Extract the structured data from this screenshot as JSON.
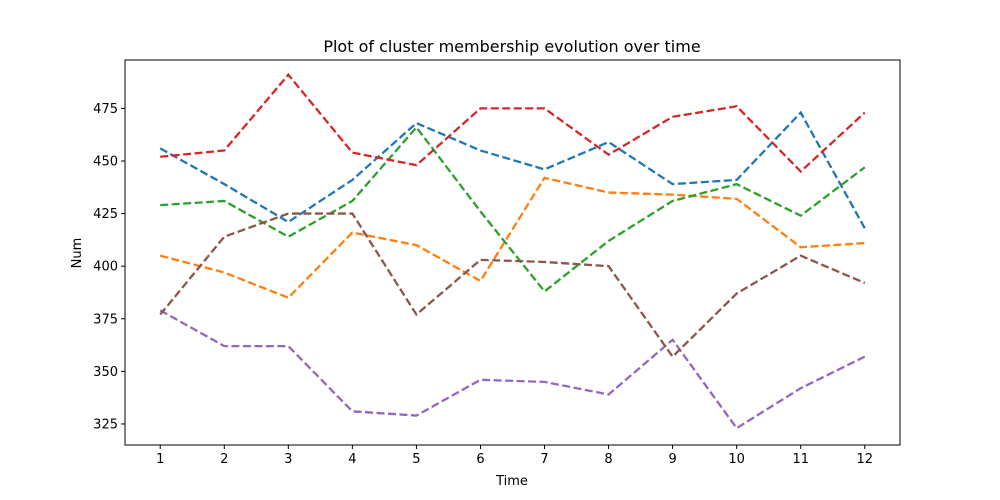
{
  "chart_data": {
    "type": "line",
    "title": "Plot of cluster membership evolution over time",
    "xlabel": "Time",
    "ylabel": "Num",
    "x": [
      1,
      2,
      3,
      4,
      5,
      6,
      7,
      8,
      9,
      10,
      11,
      12
    ],
    "xlim": [
      0.45,
      12.55
    ],
    "ylim": [
      315,
      498
    ],
    "yticks": [
      325,
      350,
      375,
      400,
      425,
      450,
      475
    ],
    "grid": false,
    "line_style": "dashed",
    "series": [
      {
        "color": "#1f77b4",
        "values": [
          456,
          439,
          421,
          441,
          468,
          455,
          446,
          459,
          439,
          441,
          473,
          418
        ]
      },
      {
        "color": "#ff7f0e",
        "values": [
          405,
          397,
          385,
          416,
          410,
          393,
          442,
          435,
          434,
          432,
          409,
          411
        ]
      },
      {
        "color": "#2ca02c",
        "values": [
          429,
          431,
          414,
          431,
          466,
          426,
          388,
          412,
          431,
          439,
          424,
          447
        ]
      },
      {
        "color": "#d62728",
        "values": [
          452,
          455,
          491,
          454,
          448,
          475,
          475,
          453,
          471,
          476,
          445,
          473
        ]
      },
      {
        "color": "#9467bd",
        "values": [
          379,
          362,
          362,
          331,
          329,
          346,
          345,
          339,
          365,
          323,
          342,
          357
        ]
      },
      {
        "color": "#8c564b",
        "values": [
          377,
          414,
          425,
          425,
          377,
          403,
          402,
          400,
          357,
          387,
          405,
          392
        ]
      }
    ]
  }
}
